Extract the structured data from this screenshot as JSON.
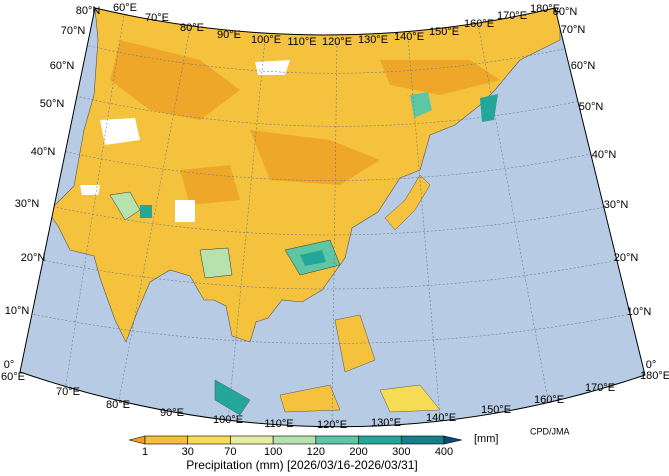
{
  "map": {
    "title": "Precipitation (mm) [2026/03/16-2026/03/31]",
    "unit": "[mm]",
    "credit": "CPD/JMA",
    "colorbar": {
      "ticks": [
        1,
        30,
        70,
        100,
        120,
        200,
        300,
        400
      ],
      "colors": [
        "#eea024",
        "#f4bf3a",
        "#f6dc55",
        "#e6eea2",
        "#b5e2ad",
        "#5cc6a5",
        "#22a79a",
        "#14808e",
        "#0b4a7a"
      ]
    },
    "labels": {
      "top": [
        "60°E",
        "70°E",
        "80°E",
        "90°E",
        "100°E",
        "110°E",
        "120°E",
        "130°E",
        "140°E",
        "150°E",
        "160°E",
        "170°E",
        "180°E"
      ],
      "bottom": [
        "60°E",
        "70°E",
        "80°E",
        "90°E",
        "100°E",
        "110°E",
        "120°E",
        "130°E",
        "140°E",
        "150°E",
        "160°E",
        "170°E",
        "180°E"
      ],
      "left": [
        "80°N",
        "70°N",
        "60°N",
        "50°N",
        "40°N",
        "30°N",
        "20°N",
        "10°N",
        "0°"
      ],
      "right": [
        "80°N",
        "70°N",
        "60°N",
        "50°N",
        "40°N",
        "30°N",
        "20°N",
        "10°N",
        "0°"
      ]
    }
  }
}
